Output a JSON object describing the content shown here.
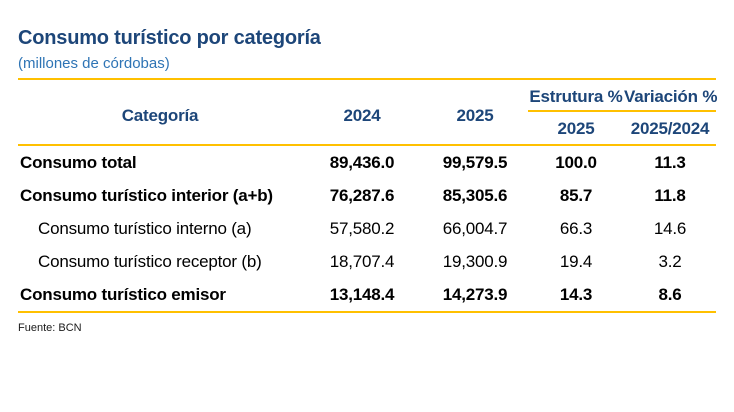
{
  "title": "Consumo turístico por categoría",
  "subtitle": "(millones de córdobas)",
  "colors": {
    "title_navy": "#1d4679",
    "subtitle_blue": "#2e74b5",
    "rule_gold": "#ffc000",
    "body_text": "#000000"
  },
  "table": {
    "header": {
      "category": "Categoría",
      "year_1": "2024",
      "year_2": "2025",
      "estructura_label": "Estrutura %",
      "estructura_sub": "2025",
      "variacion_label": "Variación %",
      "variacion_sub": "2025/2024"
    },
    "rows": [
      {
        "label": "Consumo total",
        "v2024": "89,436.0",
        "v2025": "99,579.5",
        "estructura": "100.0",
        "variacion": "11.3"
      },
      {
        "label": "Consumo turístico interior (a+b)",
        "v2024": "76,287.6",
        "v2025": "85,305.6",
        "estructura": "85.7",
        "variacion": "11.8"
      },
      {
        "label": "Consumo turístico interno (a)",
        "v2024": "57,580.2",
        "v2025": "66,004.7",
        "estructura": "66.3",
        "variacion": "14.6"
      },
      {
        "label": "Consumo turístico receptor (b)",
        "v2024": "18,707.4",
        "v2025": "19,300.9",
        "estructura": "19.4",
        "variacion": "3.2"
      },
      {
        "label": "Consumo turístico emisor",
        "v2024": "13,148.4",
        "v2025": "14,273.9",
        "estructura": "14.3",
        "variacion": "8.6"
      }
    ]
  },
  "footer": {
    "source": "Fuente: BCN"
  }
}
